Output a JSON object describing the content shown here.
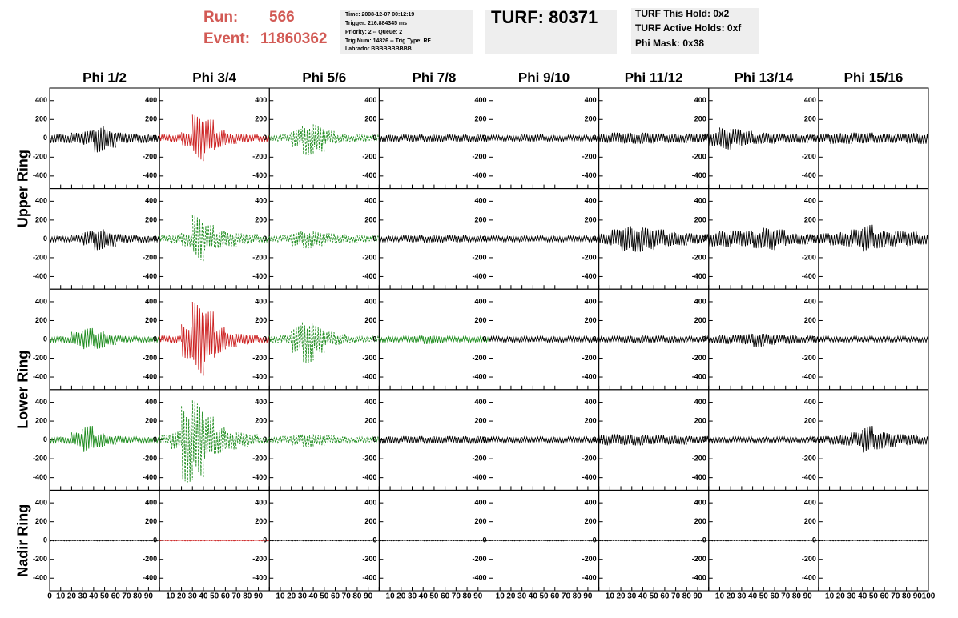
{
  "header": {
    "run_label": "Run:",
    "run": "566",
    "event_label": "Event:",
    "event": "11860362",
    "info": [
      "Time: 2008-12-07 00:12:19",
      "Trigger: 216.884345 ms",
      "Priority: 2 -- Queue: 2",
      "Trig Num: 14826 -- Trig Type: RF",
      "Labrador BBBBBBBBBB"
    ],
    "turf": "TURF: 80371",
    "turf_info": [
      "TURF This Hold: 0x2",
      "TURF Active Holds: 0xf",
      "Phi Mask: 0x38"
    ]
  },
  "chart_data": {
    "type": "waveform-grid",
    "columns": [
      "Phi 1/2",
      "Phi 3/4",
      "Phi 5/6",
      "Phi 7/8",
      "Phi 9/10",
      "Phi 11/12",
      "Phi 13/14",
      "Phi 15/16"
    ],
    "row_labels": [
      "Upper Ring",
      "Lower Ring",
      "Nadir Ring"
    ],
    "ylim": [
      -500,
      500
    ],
    "yticks": [
      -400,
      -200,
      0,
      200,
      400
    ],
    "xlim": [
      0,
      100
    ],
    "xticks": [
      0,
      10,
      20,
      30,
      40,
      50,
      60,
      70,
      80,
      90,
      100
    ],
    "envelope_x": [
      0,
      10,
      20,
      30,
      40,
      50,
      60,
      70,
      80,
      90
    ],
    "panels": [
      [
        {
          "color": "#000000",
          "dashed": false,
          "envelope": [
            50,
            50,
            60,
            80,
            150,
            100,
            60,
            50,
            50,
            40
          ]
        },
        {
          "color": "#cc2020",
          "dashed": false,
          "envelope": [
            40,
            40,
            80,
            250,
            200,
            100,
            60,
            50,
            40,
            40
          ]
        },
        {
          "color": "#1e8c1e",
          "dashed": true,
          "envelope": [
            30,
            40,
            100,
            180,
            150,
            80,
            50,
            40,
            40,
            30
          ]
        },
        {
          "color": "#000000",
          "dashed": false,
          "envelope": [
            40,
            40,
            40,
            40,
            40,
            40,
            40,
            40,
            40,
            40
          ]
        },
        {
          "color": "#000000",
          "dashed": false,
          "envelope": [
            30,
            30,
            30,
            40,
            40,
            30,
            30,
            30,
            30,
            30
          ]
        },
        {
          "color": "#000000",
          "dashed": false,
          "envelope": [
            50,
            60,
            60,
            60,
            60,
            50,
            50,
            50,
            50,
            50
          ]
        },
        {
          "color": "#000000",
          "dashed": false,
          "envelope": [
            80,
            120,
            100,
            80,
            60,
            60,
            50,
            50,
            50,
            40
          ]
        },
        {
          "color": "#000000",
          "dashed": false,
          "envelope": [
            50,
            60,
            60,
            60,
            60,
            50,
            50,
            50,
            60,
            60
          ]
        }
      ],
      [
        {
          "color": "#000000",
          "dashed": false,
          "envelope": [
            30,
            30,
            40,
            80,
            120,
            80,
            50,
            40,
            40,
            30
          ]
        },
        {
          "color": "#1e8c1e",
          "dashed": true,
          "envelope": [
            40,
            50,
            80,
            250,
            150,
            100,
            80,
            60,
            50,
            40
          ]
        },
        {
          "color": "#1e8c1e",
          "dashed": true,
          "envelope": [
            30,
            40,
            80,
            100,
            80,
            60,
            50,
            40,
            40,
            30
          ]
        },
        {
          "color": "#000000",
          "dashed": false,
          "envelope": [
            30,
            30,
            40,
            40,
            40,
            40,
            40,
            40,
            30,
            30
          ]
        },
        {
          "color": "#000000",
          "dashed": false,
          "envelope": [
            30,
            30,
            30,
            30,
            30,
            30,
            30,
            30,
            30,
            30
          ]
        },
        {
          "color": "#000000",
          "dashed": false,
          "envelope": [
            60,
            100,
            140,
            140,
            120,
            100,
            80,
            70,
            60,
            50
          ]
        },
        {
          "color": "#000000",
          "dashed": false,
          "envelope": [
            80,
            90,
            90,
            90,
            100,
            120,
            100,
            60,
            60,
            50
          ]
        },
        {
          "color": "#000000",
          "dashed": false,
          "envelope": [
            60,
            70,
            80,
            100,
            150,
            100,
            80,
            80,
            80,
            60
          ]
        }
      ],
      [
        {
          "color": "#1e8c1e",
          "dashed": false,
          "envelope": [
            30,
            40,
            80,
            120,
            100,
            60,
            40,
            30,
            30,
            30
          ]
        },
        {
          "color": "#cc2020",
          "dashed": false,
          "envelope": [
            40,
            40,
            200,
            400,
            300,
            150,
            80,
            60,
            50,
            40
          ]
        },
        {
          "color": "#1e8c1e",
          "dashed": true,
          "envelope": [
            40,
            50,
            150,
            250,
            150,
            80,
            60,
            40,
            30,
            30
          ]
        },
        {
          "color": "#1e8c1e",
          "dashed": false,
          "envelope": [
            30,
            30,
            30,
            40,
            50,
            40,
            30,
            30,
            30,
            30
          ]
        },
        {
          "color": "#000000",
          "dashed": false,
          "envelope": [
            30,
            30,
            30,
            30,
            30,
            30,
            30,
            30,
            30,
            30
          ]
        },
        {
          "color": "#000000",
          "dashed": false,
          "envelope": [
            30,
            30,
            40,
            40,
            40,
            40,
            40,
            30,
            30,
            30
          ]
        },
        {
          "color": "#000000",
          "dashed": false,
          "envelope": [
            40,
            50,
            50,
            60,
            80,
            60,
            50,
            50,
            40,
            40
          ]
        },
        {
          "color": "#000000",
          "dashed": false,
          "envelope": [
            30,
            30,
            30,
            30,
            30,
            30,
            30,
            30,
            30,
            30
          ]
        }
      ],
      [
        {
          "color": "#1e8c1e",
          "dashed": false,
          "envelope": [
            30,
            40,
            80,
            150,
            80,
            50,
            40,
            30,
            30,
            30
          ]
        },
        {
          "color": "#1e8c1e",
          "dashed": true,
          "envelope": [
            50,
            100,
            450,
            420,
            250,
            150,
            100,
            80,
            60,
            40
          ]
        },
        {
          "color": "#1e8c1e",
          "dashed": true,
          "envelope": [
            30,
            40,
            60,
            80,
            60,
            50,
            40,
            30,
            30,
            30
          ]
        },
        {
          "color": "#000000",
          "dashed": false,
          "envelope": [
            40,
            40,
            40,
            40,
            40,
            40,
            40,
            40,
            40,
            40
          ]
        },
        {
          "color": "#000000",
          "dashed": false,
          "envelope": [
            30,
            30,
            30,
            30,
            30,
            30,
            30,
            30,
            30,
            30
          ]
        },
        {
          "color": "#000000",
          "dashed": false,
          "envelope": [
            60,
            60,
            60,
            60,
            50,
            50,
            50,
            50,
            40,
            40
          ]
        },
        {
          "color": "#000000",
          "dashed": false,
          "envelope": [
            30,
            30,
            30,
            30,
            30,
            30,
            30,
            30,
            30,
            30
          ]
        },
        {
          "color": "#000000",
          "dashed": false,
          "envelope": [
            40,
            50,
            60,
            80,
            150,
            100,
            80,
            60,
            60,
            50
          ]
        }
      ],
      [
        {
          "color": "#000000",
          "dashed": false,
          "envelope": [
            5,
            5,
            5,
            5,
            5,
            5,
            5,
            5,
            5,
            5
          ]
        },
        {
          "color": "#cc2020",
          "dashed": false,
          "envelope": [
            5,
            5,
            5,
            5,
            5,
            5,
            5,
            5,
            5,
            5
          ]
        },
        {
          "color": "#000000",
          "dashed": false,
          "envelope": [
            5,
            5,
            5,
            5,
            5,
            5,
            5,
            5,
            5,
            5
          ]
        },
        {
          "color": "#000000",
          "dashed": false,
          "envelope": [
            5,
            5,
            5,
            5,
            5,
            5,
            5,
            5,
            5,
            5
          ]
        },
        {
          "color": "#000000",
          "dashed": false,
          "envelope": [
            5,
            5,
            5,
            5,
            5,
            5,
            5,
            5,
            5,
            5
          ]
        },
        {
          "color": "#000000",
          "dashed": false,
          "envelope": [
            5,
            5,
            5,
            5,
            5,
            5,
            5,
            5,
            5,
            5
          ]
        },
        {
          "color": "#000000",
          "dashed": false,
          "envelope": [
            5,
            5,
            5,
            5,
            5,
            5,
            5,
            5,
            5,
            5
          ]
        },
        {
          "color": "#000000",
          "dashed": false,
          "envelope": [
            5,
            5,
            5,
            5,
            5,
            5,
            5,
            5,
            5,
            5
          ]
        }
      ]
    ]
  }
}
